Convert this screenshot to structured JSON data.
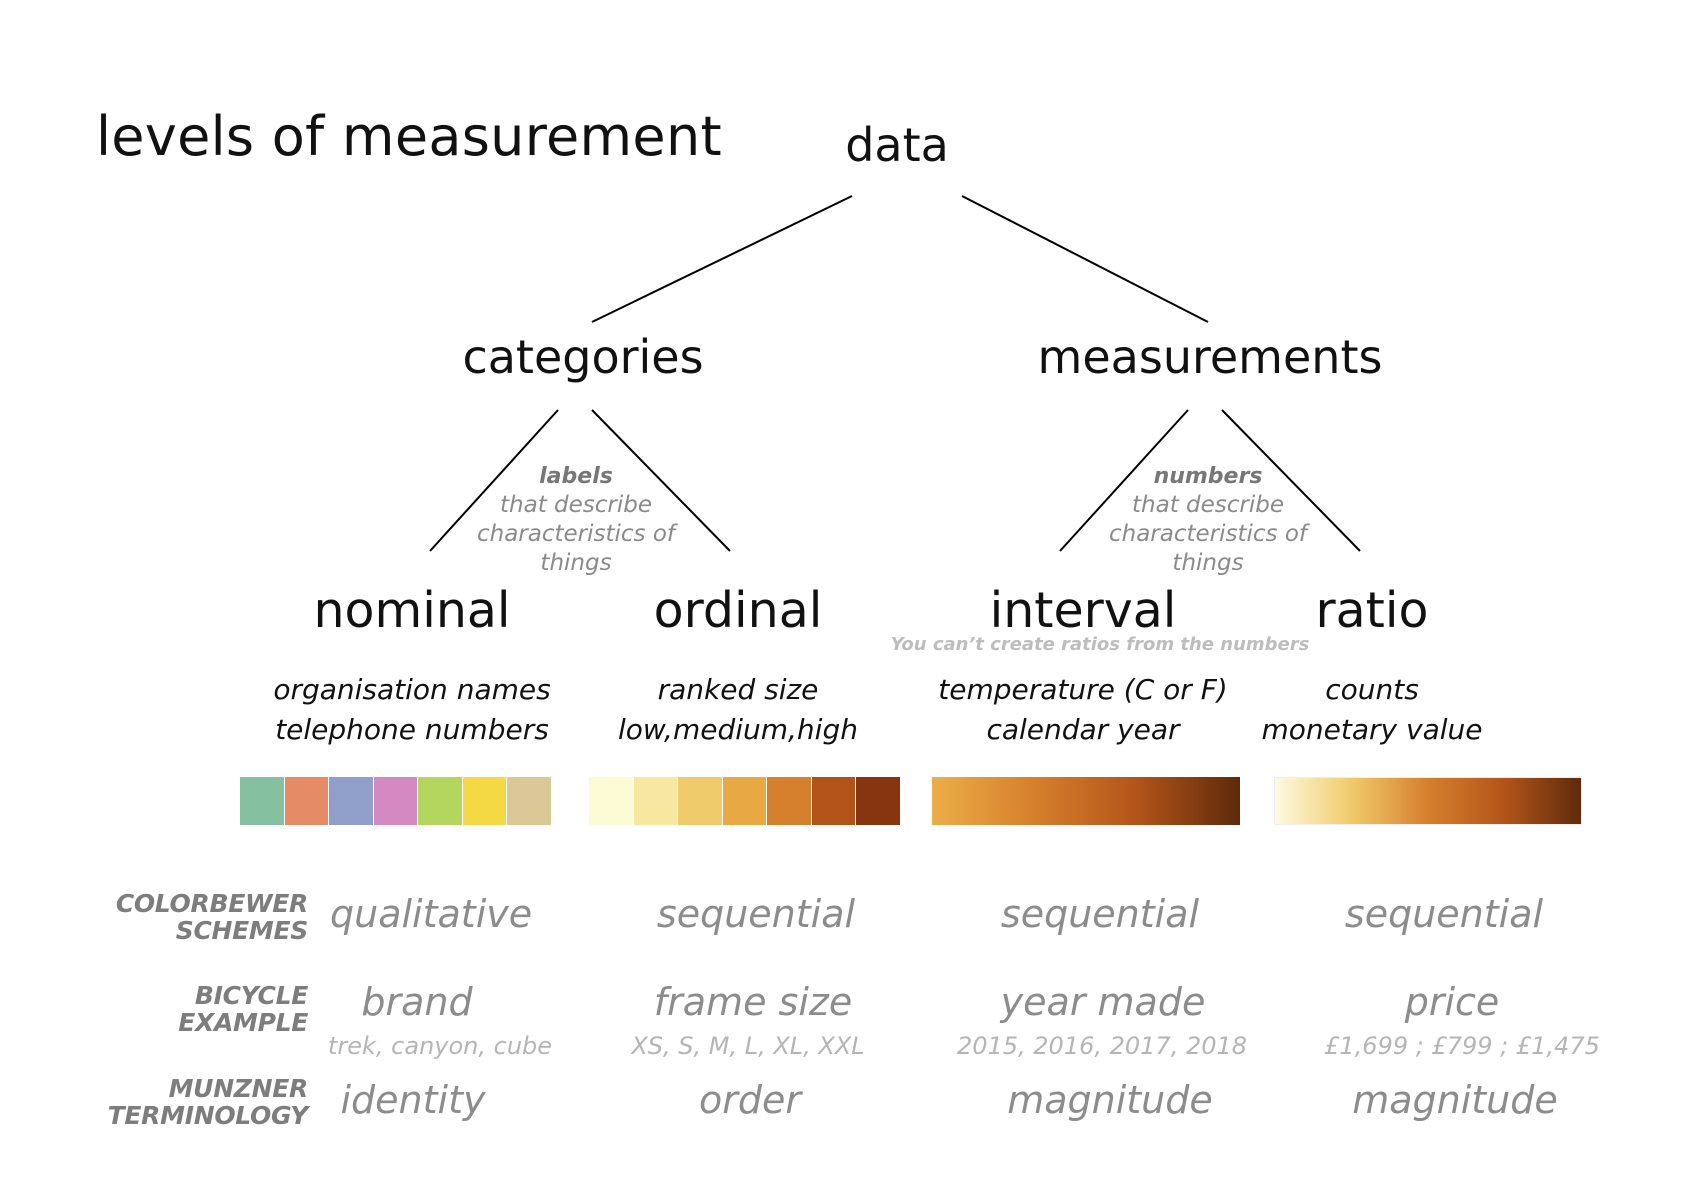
{
  "title": "levels of measurement",
  "root": "data",
  "branches": {
    "categories": "categories",
    "measurements": "measurements"
  },
  "descriptions": {
    "categories": {
      "bold": "labels",
      "text": [
        "that describe",
        "characteristics of",
        "things"
      ]
    },
    "measurements": {
      "bold": "numbers",
      "text": [
        "that describe",
        "characteristics of",
        "things"
      ]
    }
  },
  "levels": {
    "nominal": {
      "name": "nominal",
      "examples": [
        "organisation names",
        "telephone numbers"
      ]
    },
    "ordinal": {
      "name": "ordinal",
      "examples": [
        "ranked size",
        "low,medium,high"
      ]
    },
    "interval": {
      "name": "interval",
      "examples": [
        "temperature (C or F)",
        "calendar year"
      ]
    },
    "ratio": {
      "name": "ratio",
      "examples": [
        "counts",
        "monetary value"
      ]
    }
  },
  "interval_note": "You can’t create ratios from the numbers",
  "colors": {
    "qualitative": [
      "#85c1a1",
      "#e58c66",
      "#8f9fc9",
      "#d489c2",
      "#b3d65f",
      "#f4d944",
      "#dcc796"
    ],
    "sequential_steps": [
      "#fdfbd5",
      "#f8e7a0",
      "#f0cb6b",
      "#e8a844",
      "#d67f2c",
      "#b2541a",
      "#873510"
    ],
    "interval_gradient": [
      "#ecae48",
      "#d67f2c",
      "#b2541a",
      "#5e2a0c"
    ],
    "ratio_gradient": [
      "#fdfbe3",
      "#f0cb6b",
      "#d67f2c",
      "#b2541a",
      "#5e2a0c"
    ]
  },
  "rows": {
    "colorbrewer": {
      "label": [
        "COLORBEWER",
        "SCHEMES"
      ],
      "values": [
        "qualitative",
        "sequential",
        "sequential",
        "sequential"
      ]
    },
    "bicycle": {
      "label": [
        "BICYCLE",
        "EXAMPLE"
      ],
      "values": [
        "brand",
        "frame size",
        "year made",
        "price"
      ],
      "subs": [
        "trek, canyon, cube",
        "XS, S, M, L, XL, XXL",
        "2015, 2016, 2017, 2018",
        "£1,699 ; £799 ; £1,475"
      ]
    },
    "munzner": {
      "label": [
        "MUNZNER",
        "TERMINOLOGY"
      ],
      "values": [
        "identity",
        "order",
        "magnitude",
        "magnitude"
      ]
    }
  }
}
